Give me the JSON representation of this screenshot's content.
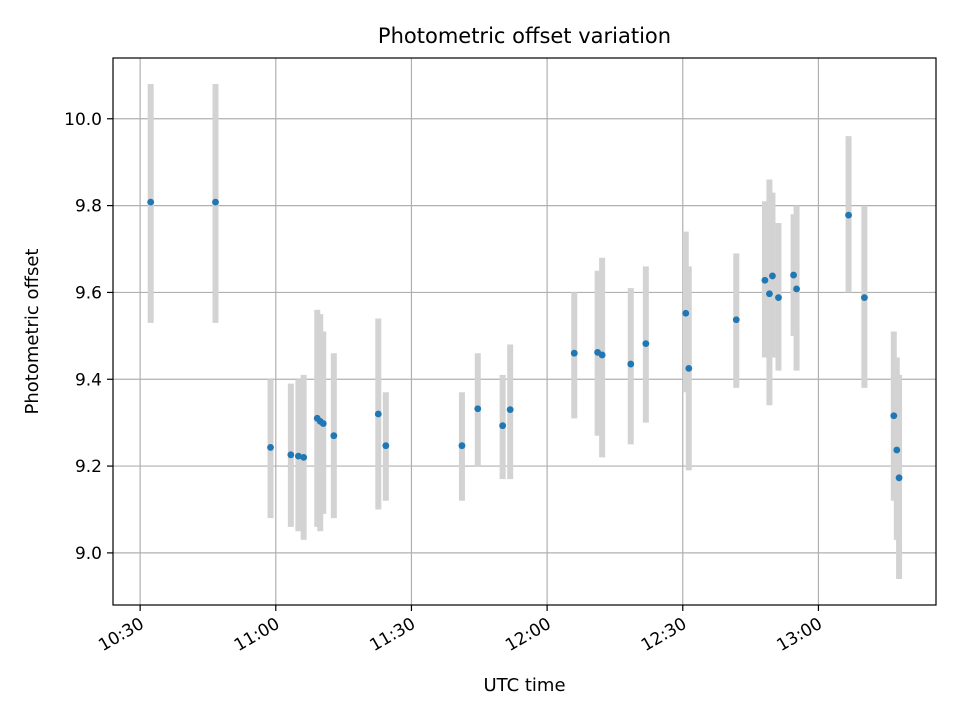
{
  "chart_data": {
    "type": "scatter",
    "title": "Photometric offset variation",
    "xlabel": "UTC time",
    "ylabel": "Photometric offset",
    "x_ticks": [
      "10:30",
      "11:00",
      "11:30",
      "12:00",
      "12:30",
      "13:00"
    ],
    "y_ticks": [
      "9.0",
      "9.2",
      "9.4",
      "9.6",
      "9.8",
      "10.0"
    ],
    "xlim": [
      "10:24",
      "13:26"
    ],
    "ylim": [
      8.88,
      10.14
    ],
    "grid": true,
    "error_bar_color": "#d3d3d3",
    "marker_color": "#1f77b4",
    "series": [
      {
        "points": [
          {
            "x": "10:32:20",
            "y": 9.808,
            "low": 9.53,
            "high": 10.08
          },
          {
            "x": "10:46:40",
            "y": 9.808,
            "low": 9.53,
            "high": 10.08
          },
          {
            "x": "10:58:50",
            "y": 9.243,
            "low": 9.08,
            "high": 9.4
          },
          {
            "x": "11:03:20",
            "y": 9.226,
            "low": 9.06,
            "high": 9.39
          },
          {
            "x": "11:05:00",
            "y": 9.223,
            "low": 9.05,
            "high": 9.4
          },
          {
            "x": "11:06:10",
            "y": 9.22,
            "low": 9.03,
            "high": 9.41
          },
          {
            "x": "11:09:10",
            "y": 9.31,
            "low": 9.06,
            "high": 9.56
          },
          {
            "x": "11:09:50",
            "y": 9.303,
            "low": 9.05,
            "high": 9.55
          },
          {
            "x": "11:10:30",
            "y": 9.298,
            "low": 9.09,
            "high": 9.51
          },
          {
            "x": "11:12:50",
            "y": 9.27,
            "low": 9.08,
            "high": 9.46
          },
          {
            "x": "11:22:40",
            "y": 9.32,
            "low": 9.1,
            "high": 9.54
          },
          {
            "x": "11:24:20",
            "y": 9.247,
            "low": 9.12,
            "high": 9.37
          },
          {
            "x": "11:41:10",
            "y": 9.247,
            "low": 9.12,
            "high": 9.37
          },
          {
            "x": "11:44:40",
            "y": 9.332,
            "low": 9.2,
            "high": 9.46
          },
          {
            "x": "11:50:10",
            "y": 9.293,
            "low": 9.17,
            "high": 9.41
          },
          {
            "x": "11:51:50",
            "y": 9.33,
            "low": 9.17,
            "high": 9.48
          },
          {
            "x": "12:06:00",
            "y": 9.46,
            "low": 9.31,
            "high": 9.6
          },
          {
            "x": "12:11:10",
            "y": 9.462,
            "low": 9.27,
            "high": 9.65
          },
          {
            "x": "12:12:10",
            "y": 9.456,
            "low": 9.22,
            "high": 9.68
          },
          {
            "x": "12:18:30",
            "y": 9.435,
            "low": 9.25,
            "high": 9.61
          },
          {
            "x": "12:21:50",
            "y": 9.482,
            "low": 9.3,
            "high": 9.66
          },
          {
            "x": "12:30:40",
            "y": 9.552,
            "low": 9.37,
            "high": 9.74
          },
          {
            "x": "12:31:20",
            "y": 9.425,
            "low": 9.19,
            "high": 9.66
          },
          {
            "x": "12:41:50",
            "y": 9.537,
            "low": 9.38,
            "high": 9.69
          },
          {
            "x": "12:48:10",
            "y": 9.628,
            "low": 9.45,
            "high": 9.81
          },
          {
            "x": "12:49:10",
            "y": 9.597,
            "low": 9.34,
            "high": 9.86
          },
          {
            "x": "12:49:50",
            "y": 9.638,
            "low": 9.45,
            "high": 9.83
          },
          {
            "x": "12:51:10",
            "y": 9.588,
            "low": 9.42,
            "high": 9.76
          },
          {
            "x": "12:54:30",
            "y": 9.64,
            "low": 9.5,
            "high": 9.78
          },
          {
            "x": "12:55:10",
            "y": 9.608,
            "low": 9.42,
            "high": 9.8
          },
          {
            "x": "13:06:40",
            "y": 9.778,
            "low": 9.6,
            "high": 9.96
          },
          {
            "x": "13:10:10",
            "y": 9.588,
            "low": 9.38,
            "high": 9.8
          },
          {
            "x": "13:16:40",
            "y": 9.316,
            "low": 9.12,
            "high": 9.51
          },
          {
            "x": "13:17:20",
            "y": 9.237,
            "low": 9.03,
            "high": 9.45
          },
          {
            "x": "13:17:50",
            "y": 9.173,
            "low": 8.94,
            "high": 9.41
          }
        ]
      }
    ]
  }
}
